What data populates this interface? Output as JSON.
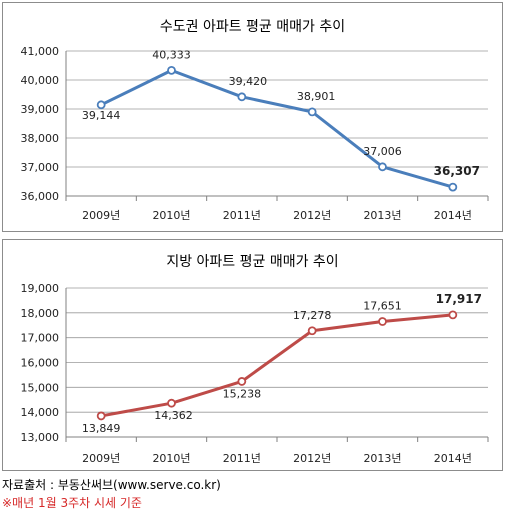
{
  "chart_data": [
    {
      "type": "line",
      "title": "수도권 아파트 평균 매매가 추이",
      "categories": [
        "2009년",
        "2010년",
        "2011년",
        "2012년",
        "2013년",
        "2014년"
      ],
      "series": [
        {
          "values": [
            39144,
            40333,
            39420,
            38901,
            37006,
            36307
          ],
          "color": "#4a7ebb"
        }
      ],
      "data_labels": [
        "39,144",
        "40,333",
        "39,420",
        "38,901",
        "37,006",
        "36,307"
      ],
      "yticks": [
        "36,000",
        "37,000",
        "38,000",
        "39,000",
        "40,000",
        "41,000"
      ],
      "ylim": [
        36000,
        41000
      ],
      "xlabel": "",
      "ylabel": "",
      "grid": true,
      "last_label_bold": true
    },
    {
      "type": "line",
      "title": "지방 아파트 평균 매매가 추이",
      "categories": [
        "2009년",
        "2010년",
        "2011년",
        "2012년",
        "2013년",
        "2014년"
      ],
      "series": [
        {
          "values": [
            13849,
            14362,
            15238,
            17278,
            17651,
            17917
          ],
          "color": "#be4b48"
        }
      ],
      "data_labels": [
        "13,849",
        "14,362",
        "15,238",
        "17,278",
        "17,651",
        "17,917"
      ],
      "yticks": [
        "13,000",
        "14,000",
        "15,000",
        "16,000",
        "17,000",
        "18,000",
        "19,000"
      ],
      "ylim": [
        13000,
        19000
      ],
      "xlabel": "",
      "ylabel": "",
      "grid": true,
      "last_label_bold": true
    }
  ],
  "footer": {
    "source": "자료출처 : 부동산써브(www.serve.co.kr)",
    "note": "※매년 1월 3주차 시세 기준"
  }
}
